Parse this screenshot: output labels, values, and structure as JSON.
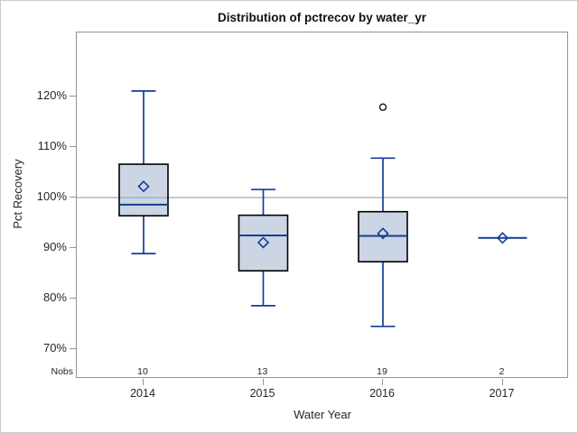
{
  "chart_data": {
    "type": "boxplot",
    "title": "Distribution of pctrecov by water_yr",
    "xlabel": "Water Year",
    "ylabel": "Pct Recovery",
    "nobs_label": "Nobs",
    "categories": [
      "2014",
      "2015",
      "2016",
      "2017"
    ],
    "nobs": [
      "10",
      "13",
      "19",
      "2"
    ],
    "y_ticks": [
      120,
      110,
      100,
      90,
      80,
      70
    ],
    "y_tick_labels": [
      "120%",
      "110%",
      "100%",
      "90%",
      "80%",
      "70%"
    ],
    "ylim": [
      64,
      133
    ],
    "refline": 100,
    "grid": "off",
    "legend": "none",
    "series": [
      {
        "category": "2014",
        "nobs": 10,
        "whisker_low": 88.9,
        "q1": 96.4,
        "median": 98.6,
        "q3": 106.6,
        "whisker_high": 121.1,
        "mean": 102.2,
        "outliers": []
      },
      {
        "category": "2015",
        "nobs": 13,
        "whisker_low": 78.6,
        "q1": 85.5,
        "median": 92.5,
        "q3": 96.5,
        "whisker_high": 101.6,
        "mean": 91.1,
        "outliers": []
      },
      {
        "category": "2016",
        "nobs": 19,
        "whisker_low": 74.5,
        "q1": 87.3,
        "median": 92.4,
        "q3": 97.2,
        "whisker_high": 107.8,
        "mean": 92.9,
        "outliers": [
          117.9
        ]
      },
      {
        "category": "2017",
        "nobs": 2,
        "whisker_low": 92.0,
        "q1": 92.0,
        "median": 92.0,
        "q3": 92.0,
        "whisker_high": 92.0,
        "mean": 92.0,
        "outliers": []
      }
    ],
    "colors": {
      "box_fill": "#ccd5e3",
      "box_border": "#000000",
      "line_blue": "#123d96",
      "refline_gray": "#a3a6ab",
      "outlier": "#000000",
      "axis_border": "#8e959d"
    }
  }
}
